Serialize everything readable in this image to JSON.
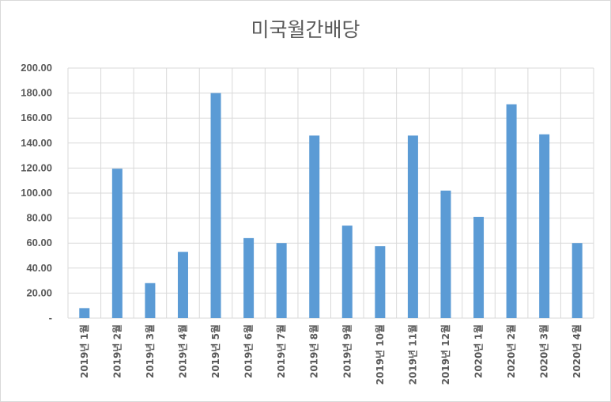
{
  "chart_data": {
    "type": "bar",
    "title": "미국월간배당",
    "xlabel": "",
    "ylabel": "",
    "ylim": [
      0,
      200
    ],
    "y_tick_labels": [
      "-",
      "20.00",
      "40.00",
      "60.00",
      "80.00",
      "100.00",
      "120.00",
      "140.00",
      "160.00",
      "180.00",
      "200.00"
    ],
    "grid": true,
    "legend": "none",
    "bar_color": "#5b9bd5",
    "grid_color": "#d9d9d9",
    "categories": [
      "2019년 1월",
      "2019년 2월",
      "2019년 3월",
      "2019년 4월",
      "2019년 5월",
      "2019년 6월",
      "2019년 7월",
      "2019년 8월",
      "2019년 9월",
      "2019년 10월",
      "2019년 11월",
      "2019년 12월",
      "2020년 1월",
      "2020년 2월",
      "2020년 3월",
      "2020년 4월"
    ],
    "values": [
      8,
      119.5,
      28,
      53,
      180,
      64,
      60,
      146,
      74,
      57.5,
      146,
      102,
      81,
      171,
      147,
      60
    ]
  }
}
